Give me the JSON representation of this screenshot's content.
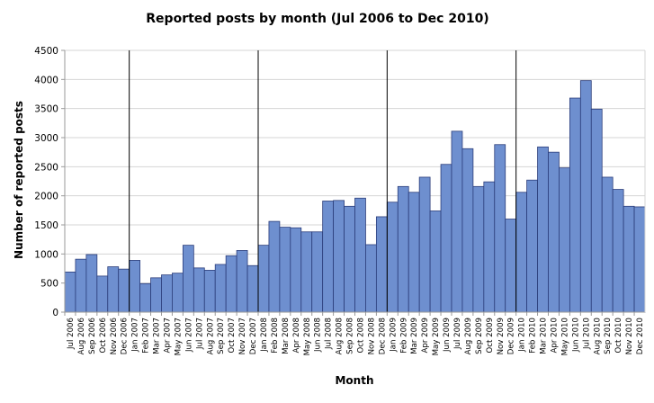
{
  "colors": {
    "bar_fill": "#6e8fcf",
    "bar_stroke": "#2b3d7a",
    "grid": "#d4d4d4",
    "axis": "#9a9a9a",
    "separator": "#000000",
    "plot_bg": "#ffffff"
  },
  "chart_data": {
    "type": "bar",
    "title": "Reported posts by month (Jul 2006 to Dec 2010)",
    "xlabel": "Month",
    "ylabel": "Number of reported posts",
    "ylim": [
      0,
      4500
    ],
    "yticks": [
      0,
      500,
      1000,
      1500,
      2000,
      2500,
      3000,
      3500,
      4000,
      4500
    ],
    "grid": "horizontal",
    "legend": "none",
    "year_separators_after": [
      "Dec 2006",
      "Dec 2007",
      "Dec 2008",
      "Dec 2009"
    ],
    "categories": [
      "Jul 2006",
      "Aug 2006",
      "Sep 2006",
      "Oct 2006",
      "Nov 2006",
      "Dec 2006",
      "Jan 2007",
      "Feb 2007",
      "Mar 2007",
      "Apr 2007",
      "May 2007",
      "Jun 2007",
      "Jul 2007",
      "Aug 2007",
      "Sep 2007",
      "Oct 2007",
      "Nov 2007",
      "Dec 2007",
      "Jan 2008",
      "Feb 2008",
      "Mar 2008",
      "Apr 2008",
      "May 2008",
      "Jun 2008",
      "Jul 2008",
      "Aug 2008",
      "Sep 2008",
      "Oct 2008",
      "Nov 2008",
      "Dec 2008",
      "Jan 2009",
      "Feb 2009",
      "Mar 2009",
      "Apr 2009",
      "May 2009",
      "Jun 2009",
      "Jul 2009",
      "Aug 2009",
      "Sep 2009",
      "Oct 2009",
      "Nov 2009",
      "Dec 2009",
      "Jan 2010",
      "Feb 2010",
      "Mar 2010",
      "Apr 2010",
      "May 2010",
      "Jun 2010",
      "Jul 2010",
      "Aug 2010",
      "Sep 2010",
      "Oct 2010",
      "Nov 2010",
      "Dec 2010"
    ],
    "values": [
      690,
      910,
      990,
      620,
      780,
      740,
      890,
      490,
      590,
      640,
      670,
      1150,
      760,
      720,
      820,
      970,
      1060,
      800,
      1150,
      1560,
      1460,
      1450,
      1380,
      1380,
      1910,
      1920,
      1820,
      1960,
      1160,
      1640,
      1890,
      2160,
      2060,
      2320,
      1740,
      2540,
      3110,
      2810,
      2160,
      2240,
      2880,
      1600,
      2060,
      2270,
      2840,
      2750,
      2480,
      3680,
      3980,
      3490,
      2320,
      2110,
      1820,
      1810
    ]
  }
}
